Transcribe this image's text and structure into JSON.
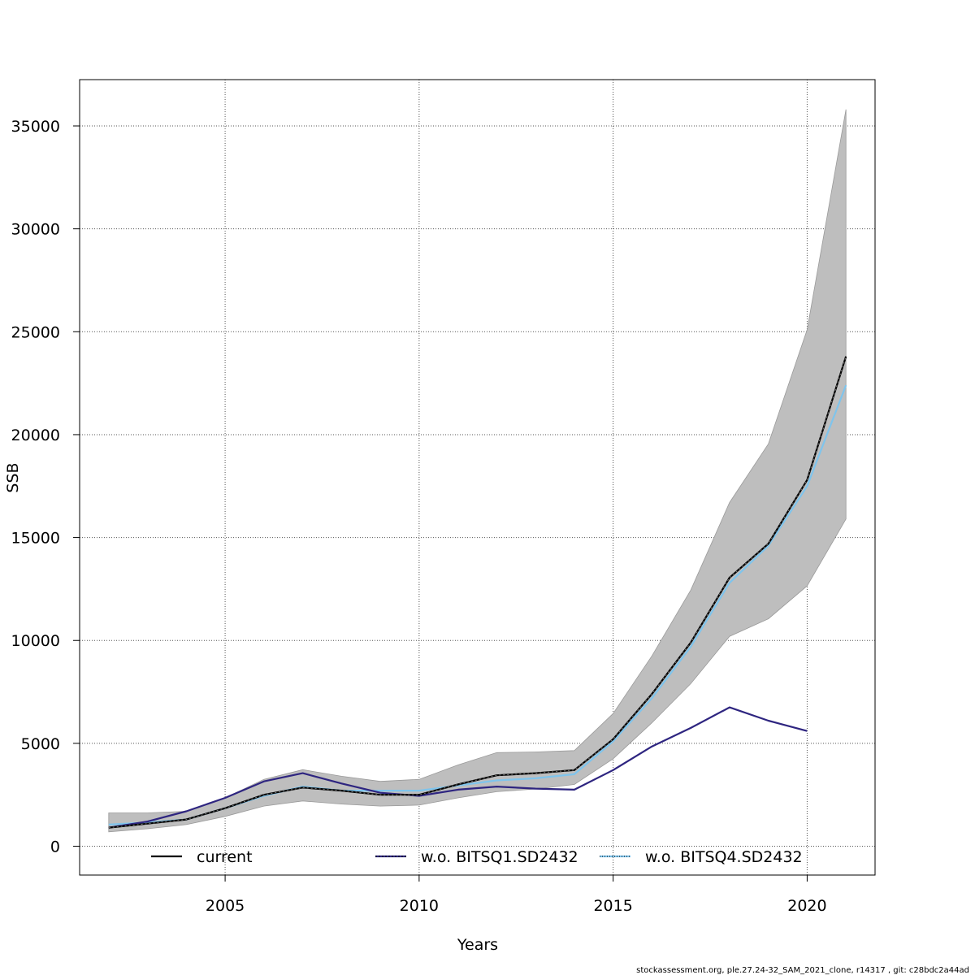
{
  "chart_data": {
    "type": "line",
    "title": "",
    "xlabel": "Years",
    "ylabel": "SSB",
    "xlim": [
      2001.25,
      2021.75
    ],
    "ylim": [
      -1400,
      37250
    ],
    "x_ticks": [
      2005,
      2010,
      2015,
      2020
    ],
    "y_ticks": [
      0,
      5000,
      10000,
      15000,
      20000,
      25000,
      30000,
      35000
    ],
    "grid": true,
    "legend_position": "bottom",
    "x": [
      2002,
      2003,
      2004,
      2005,
      2006,
      2007,
      2008,
      2009,
      2010,
      2011,
      2012,
      2013,
      2014,
      2015,
      2016,
      2017,
      2018,
      2019,
      2020,
      2021
    ],
    "confidence_band": {
      "color": "#bebebe",
      "lower": [
        700,
        850,
        1050,
        1450,
        1950,
        2200,
        2050,
        1950,
        2000,
        2350,
        2650,
        2780,
        3000,
        4250,
        6000,
        7900,
        10200,
        11050,
        12650,
        15900
      ],
      "upper": [
        1620,
        1620,
        1700,
        2350,
        3250,
        3720,
        3400,
        3150,
        3250,
        3950,
        4550,
        4580,
        4650,
        6450,
        9250,
        12450,
        16700,
        19550,
        25100,
        35800
      ]
    },
    "series": [
      {
        "name": "current",
        "color": "#000000",
        "style": "solid",
        "values": [
          900,
          1100,
          1300,
          1850,
          2500,
          2850,
          2700,
          2500,
          2500,
          3000,
          3450,
          3550,
          3700,
          5200,
          7400,
          9900,
          13050,
          14700,
          17800,
          23800
        ]
      },
      {
        "name": "w.o. BITSQ1.SD2432",
        "color": "#2e2580",
        "style": "dashed",
        "values": [
          900,
          1200,
          1700,
          2350,
          3150,
          3550,
          3050,
          2600,
          2450,
          2750,
          2900,
          2800,
          2750,
          3700,
          4850,
          5750,
          6750,
          6100,
          5600,
          null
        ]
      },
      {
        "name": "w.o. BITSQ4.SD2432",
        "color": "#7fc4ec",
        "style": "dotted",
        "values": [
          1050,
          1150,
          1300,
          1850,
          2450,
          2900,
          2700,
          2700,
          2700,
          2950,
          3200,
          3300,
          3500,
          5100,
          7200,
          9700,
          12800,
          14600,
          17500,
          22400
        ]
      }
    ]
  },
  "footer_text": "stockassessment.org, ple.27.24-32_SAM_2021_clone, r14317 , git: c28bdc2a44ad"
}
